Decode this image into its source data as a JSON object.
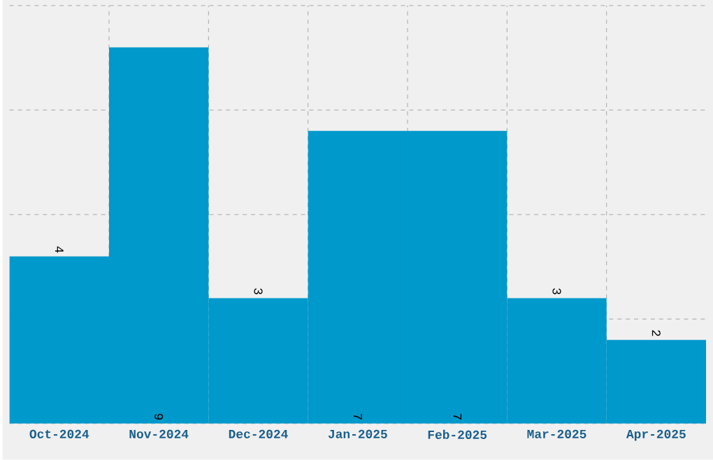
{
  "chart_data": {
    "type": "bar",
    "categories": [
      "Oct-2024",
      "Nov-2024",
      "Dec-2024",
      "Jan-2025",
      "Feb-2025",
      "Mar-2025",
      "Apr-2025"
    ],
    "values": [
      4,
      9,
      3,
      7,
      7,
      3,
      2
    ],
    "color": "#0099cc",
    "ylim": [
      0,
      10
    ],
    "yticks": [
      {
        "value": 0,
        "label": null
      },
      {
        "value": 2.5,
        "label": null
      },
      {
        "value": 5,
        "label": null
      },
      {
        "value": 7.5,
        "label": null
      },
      {
        "value": 10,
        "label": null
      }
    ],
    "tick_labels": "x",
    "grid": true,
    "data_labels": true
  }
}
